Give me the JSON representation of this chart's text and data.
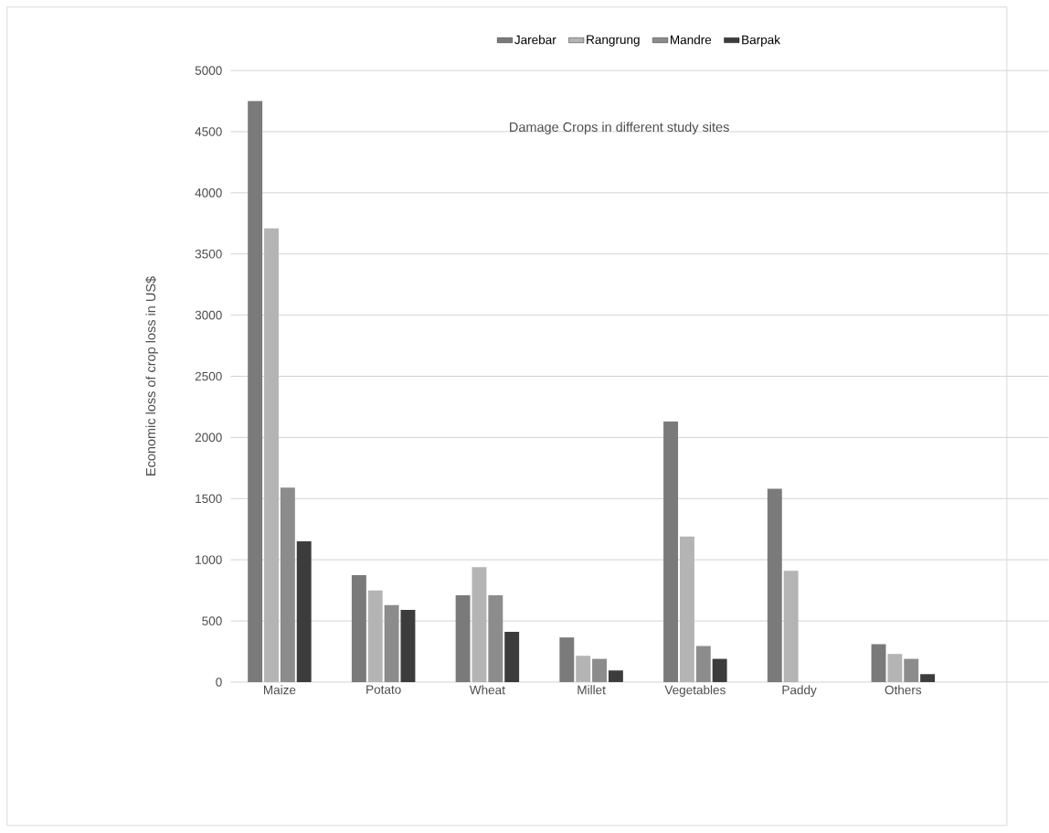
{
  "chart_data": {
    "type": "bar",
    "title": "Damage Crops in different study sites",
    "ylabel": "Economic loss of crop loss in US$",
    "categories": [
      "Maize",
      "Potato",
      "Wheat",
      "Millet",
      "Vegetables",
      "Paddy",
      "Others"
    ],
    "series": [
      {
        "name": "Jarebar",
        "color": "#7a7a7a",
        "values": [
          4750,
          875,
          710,
          365,
          2130,
          1580,
          310
        ]
      },
      {
        "name": "Rangrung",
        "color": "#b4b4b4",
        "values": [
          3710,
          750,
          940,
          215,
          1190,
          910,
          230
        ]
      },
      {
        "name": "Mandre",
        "color": "#8c8c8c",
        "values": [
          1590,
          630,
          710,
          190,
          295,
          0,
          190
        ]
      },
      {
        "name": "Barpak",
        "color": "#3c3c3c",
        "values": [
          1150,
          590,
          410,
          95,
          190,
          0,
          65
        ]
      }
    ],
    "ylim": [
      0,
      5000
    ],
    "yticks": [
      0,
      500,
      1000,
      1500,
      2000,
      2500,
      3000,
      3500,
      4000,
      4500,
      5000
    ],
    "grid": "y",
    "legend": "top"
  }
}
